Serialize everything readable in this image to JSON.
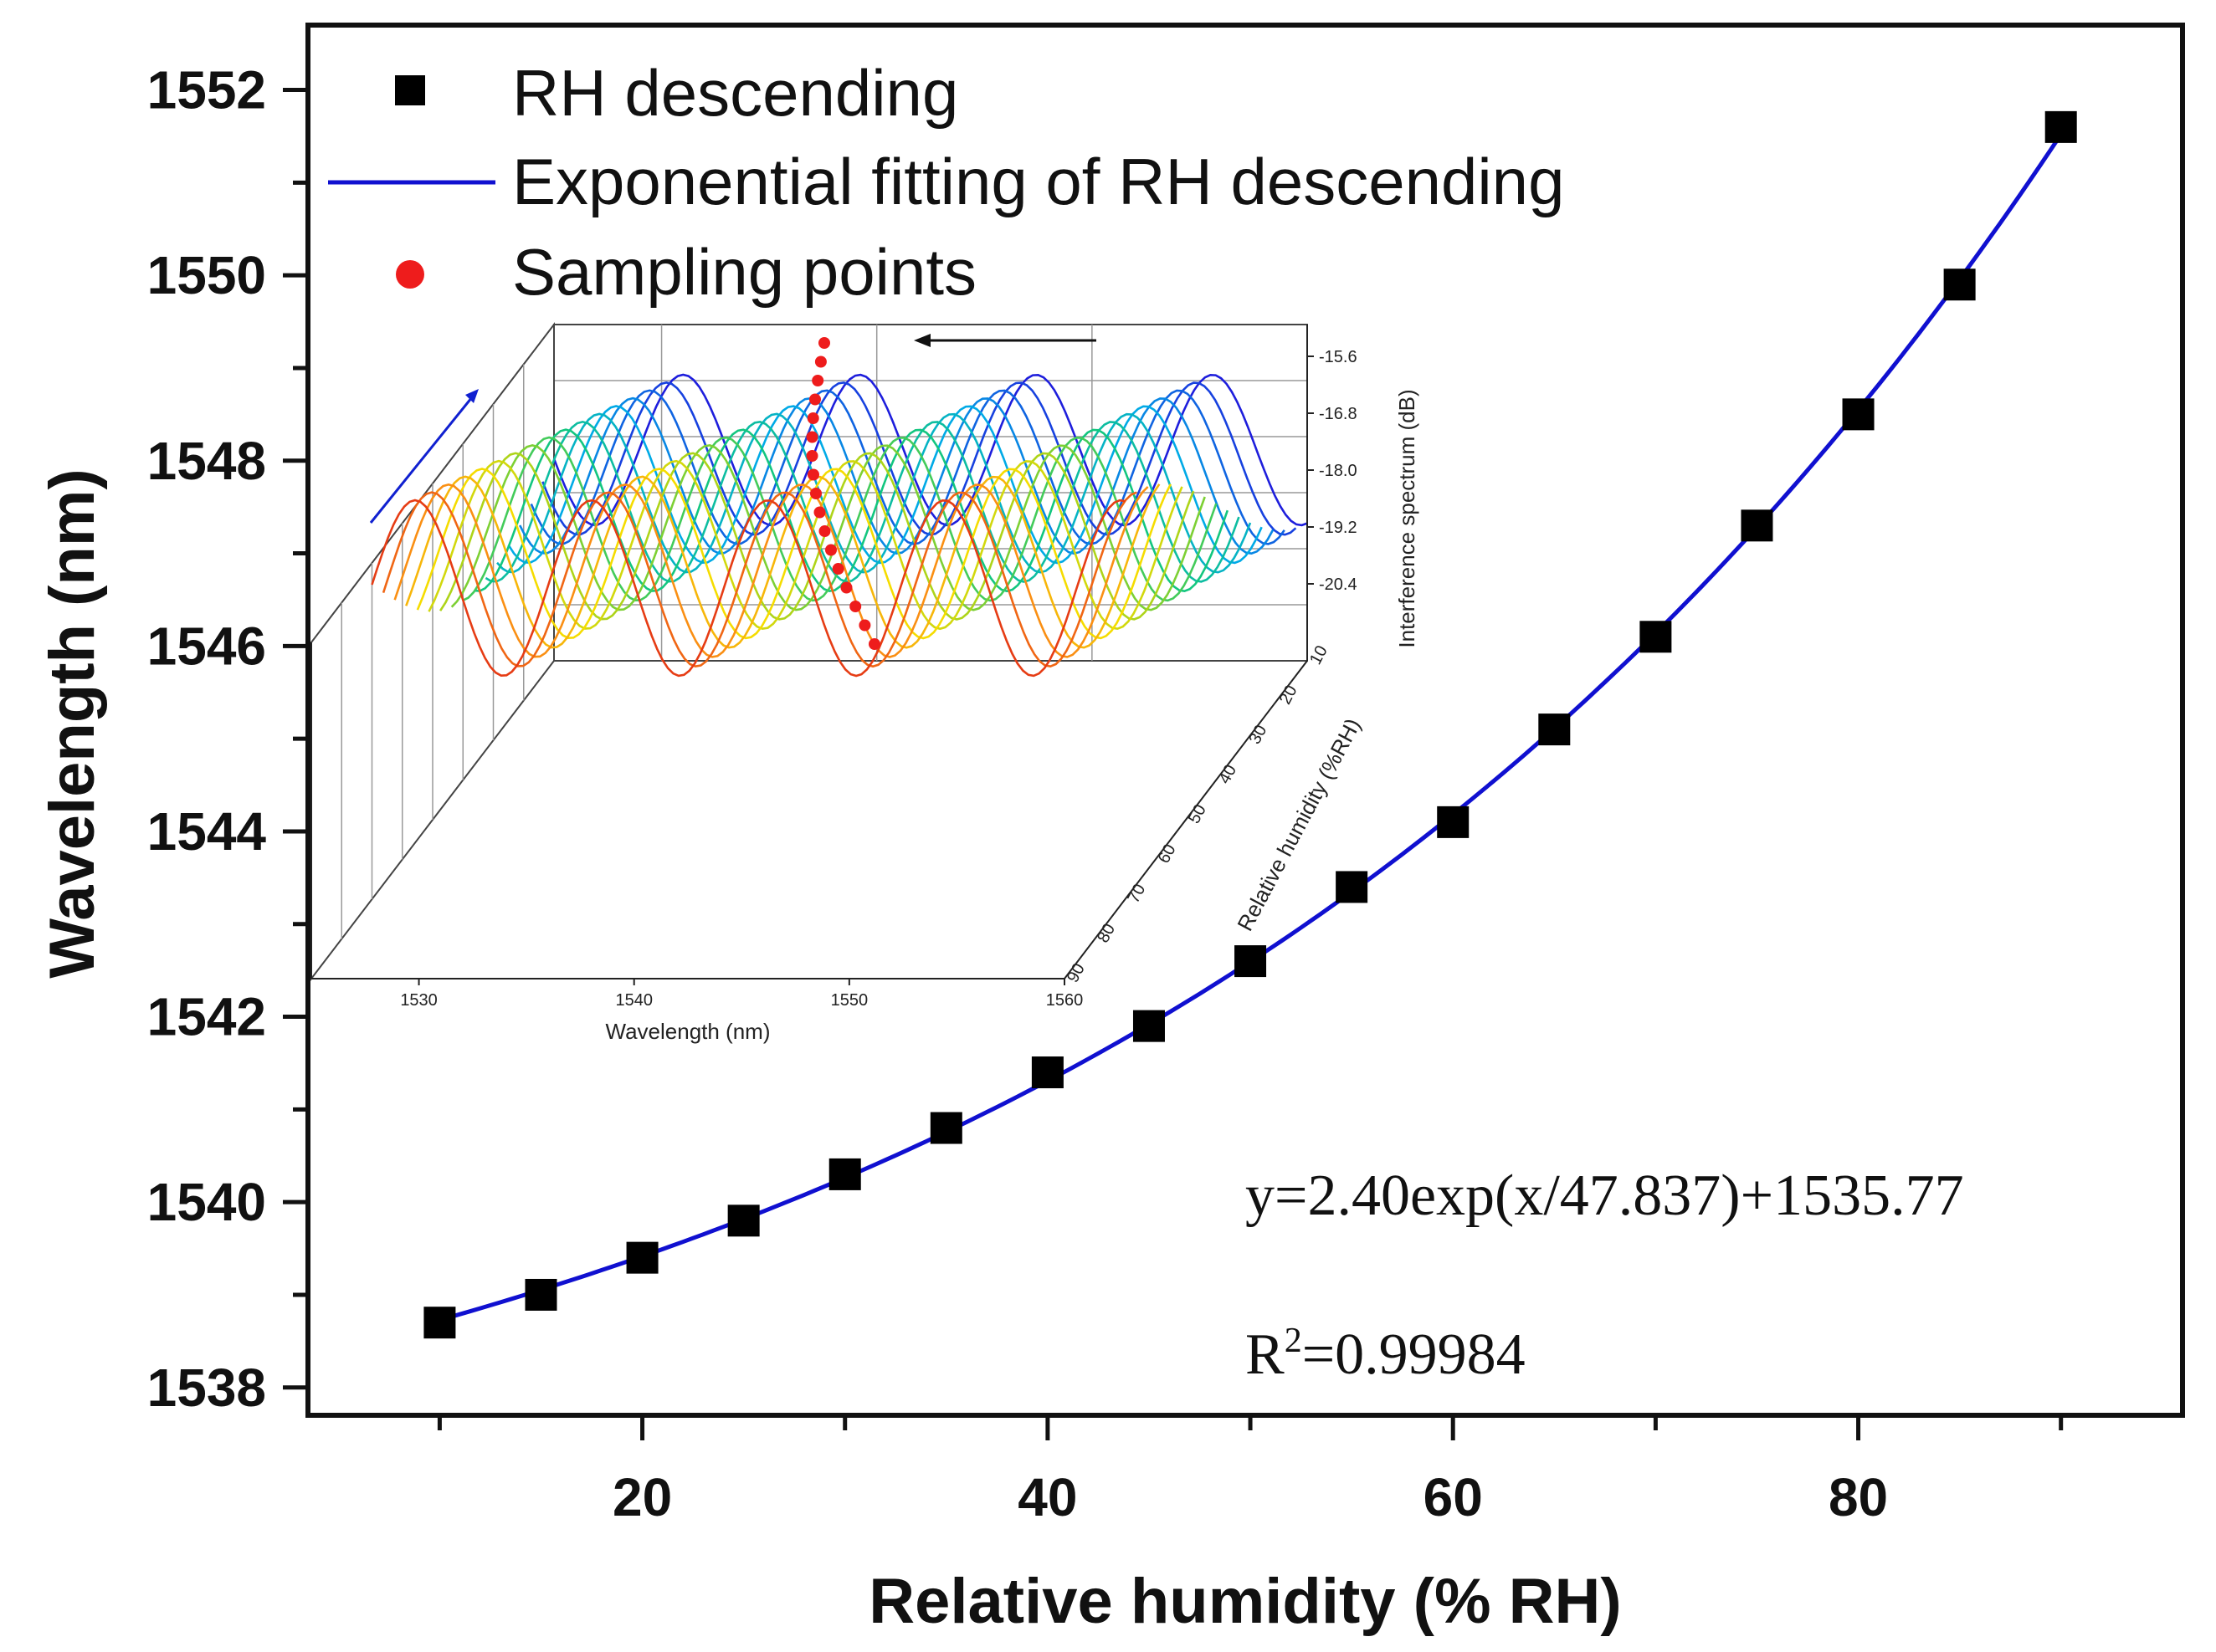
{
  "chart_data": {
    "type": "scatter",
    "xlabel": "Relative humidity (% RH)",
    "ylabel": "Wavelength (nm)",
    "xlim": [
      3.5,
      96
    ],
    "ylim": [
      1537.7,
      1552.7
    ],
    "xticks": [
      20,
      40,
      60,
      80
    ],
    "yticks": [
      1538,
      1540,
      1542,
      1544,
      1546,
      1548,
      1550,
      1552
    ],
    "series": [
      {
        "name": "RH descending",
        "marker": "square",
        "color": "#000000",
        "x": [
          10,
          15,
          20,
          25,
          30,
          35,
          40,
          45,
          50,
          55,
          60,
          65,
          70,
          75,
          80,
          85,
          90
        ],
        "y": [
          1538.7,
          1539.0,
          1539.4,
          1539.8,
          1540.3,
          1540.8,
          1541.4,
          1541.9,
          1542.6,
          1543.4,
          1544.1,
          1545.1,
          1546.1,
          1547.3,
          1548.5,
          1549.9,
          1551.6
        ]
      },
      {
        "name": "Exponential fitting of RH descending",
        "type": "line",
        "color": "#1010d0",
        "model": {
          "A": 2.4,
          "t": 47.837,
          "y0": 1535.77,
          "x_range": [
            10,
            90
          ]
        }
      }
    ],
    "legend": [
      {
        "label": "RH descending",
        "symbol": "square",
        "color": "#000000"
      },
      {
        "label": "Exponential fitting of RH descending",
        "symbol": "line",
        "color": "#1010d0"
      },
      {
        "label": "Sampling points",
        "symbol": "circle",
        "color": "#ee1c1c"
      }
    ],
    "annotations": {
      "equation": "y=2.40exp(x/47.837)+1535.77",
      "r2_prefix": "R",
      "r2_sup": "2",
      "r2_value": "=0.99984"
    },
    "inset": {
      "type": "3d-line",
      "xlabel": "Wavelength (nm)",
      "ylabel": "Relative humidity (%RH)",
      "zlabel": "Interference spectrum (dB)",
      "xticks": [
        "1530",
        "1540",
        "1550",
        "1560"
      ],
      "zticks": [
        "-15.6",
        "-16.8",
        "-18.0",
        "-19.2",
        "-20.4"
      ],
      "rh_ticks": [
        "10",
        "20",
        "30",
        "40",
        "50",
        "60",
        "70",
        "80",
        "90"
      ],
      "sampling_points_count": 17
    }
  }
}
